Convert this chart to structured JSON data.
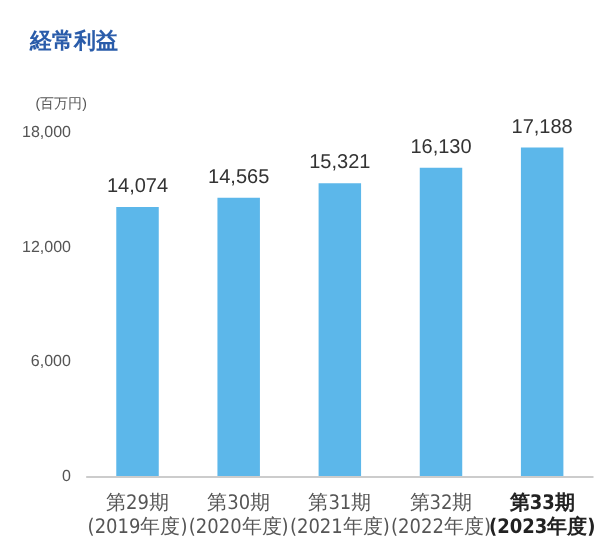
{
  "chart_data": {
    "type": "bar",
    "title": "経常利益",
    "ylabel": "(百万円)",
    "categories": [
      "第29期\n(2019年度)",
      "第30期\n(2020年度)",
      "第31期\n(2021年度)",
      "第32期\n(2022年度)",
      "第33期\n(2023年度)"
    ],
    "values": [
      14074,
      14565,
      15321,
      16130,
      17188
    ],
    "color": "#5cb7ea",
    "value_labels": [
      "14,074",
      "14,565",
      "15,321",
      "16,130",
      "17,188"
    ],
    "ylim": [
      0,
      18000
    ],
    "yticks": [
      0,
      {
        "value": 6000,
        "label": "6,000"
      },
      {
        "value": 12000,
        "label": "12,000"
      },
      {
        "value": 18000,
        "label": "18,000"
      }
    ],
    "grid": false
  }
}
